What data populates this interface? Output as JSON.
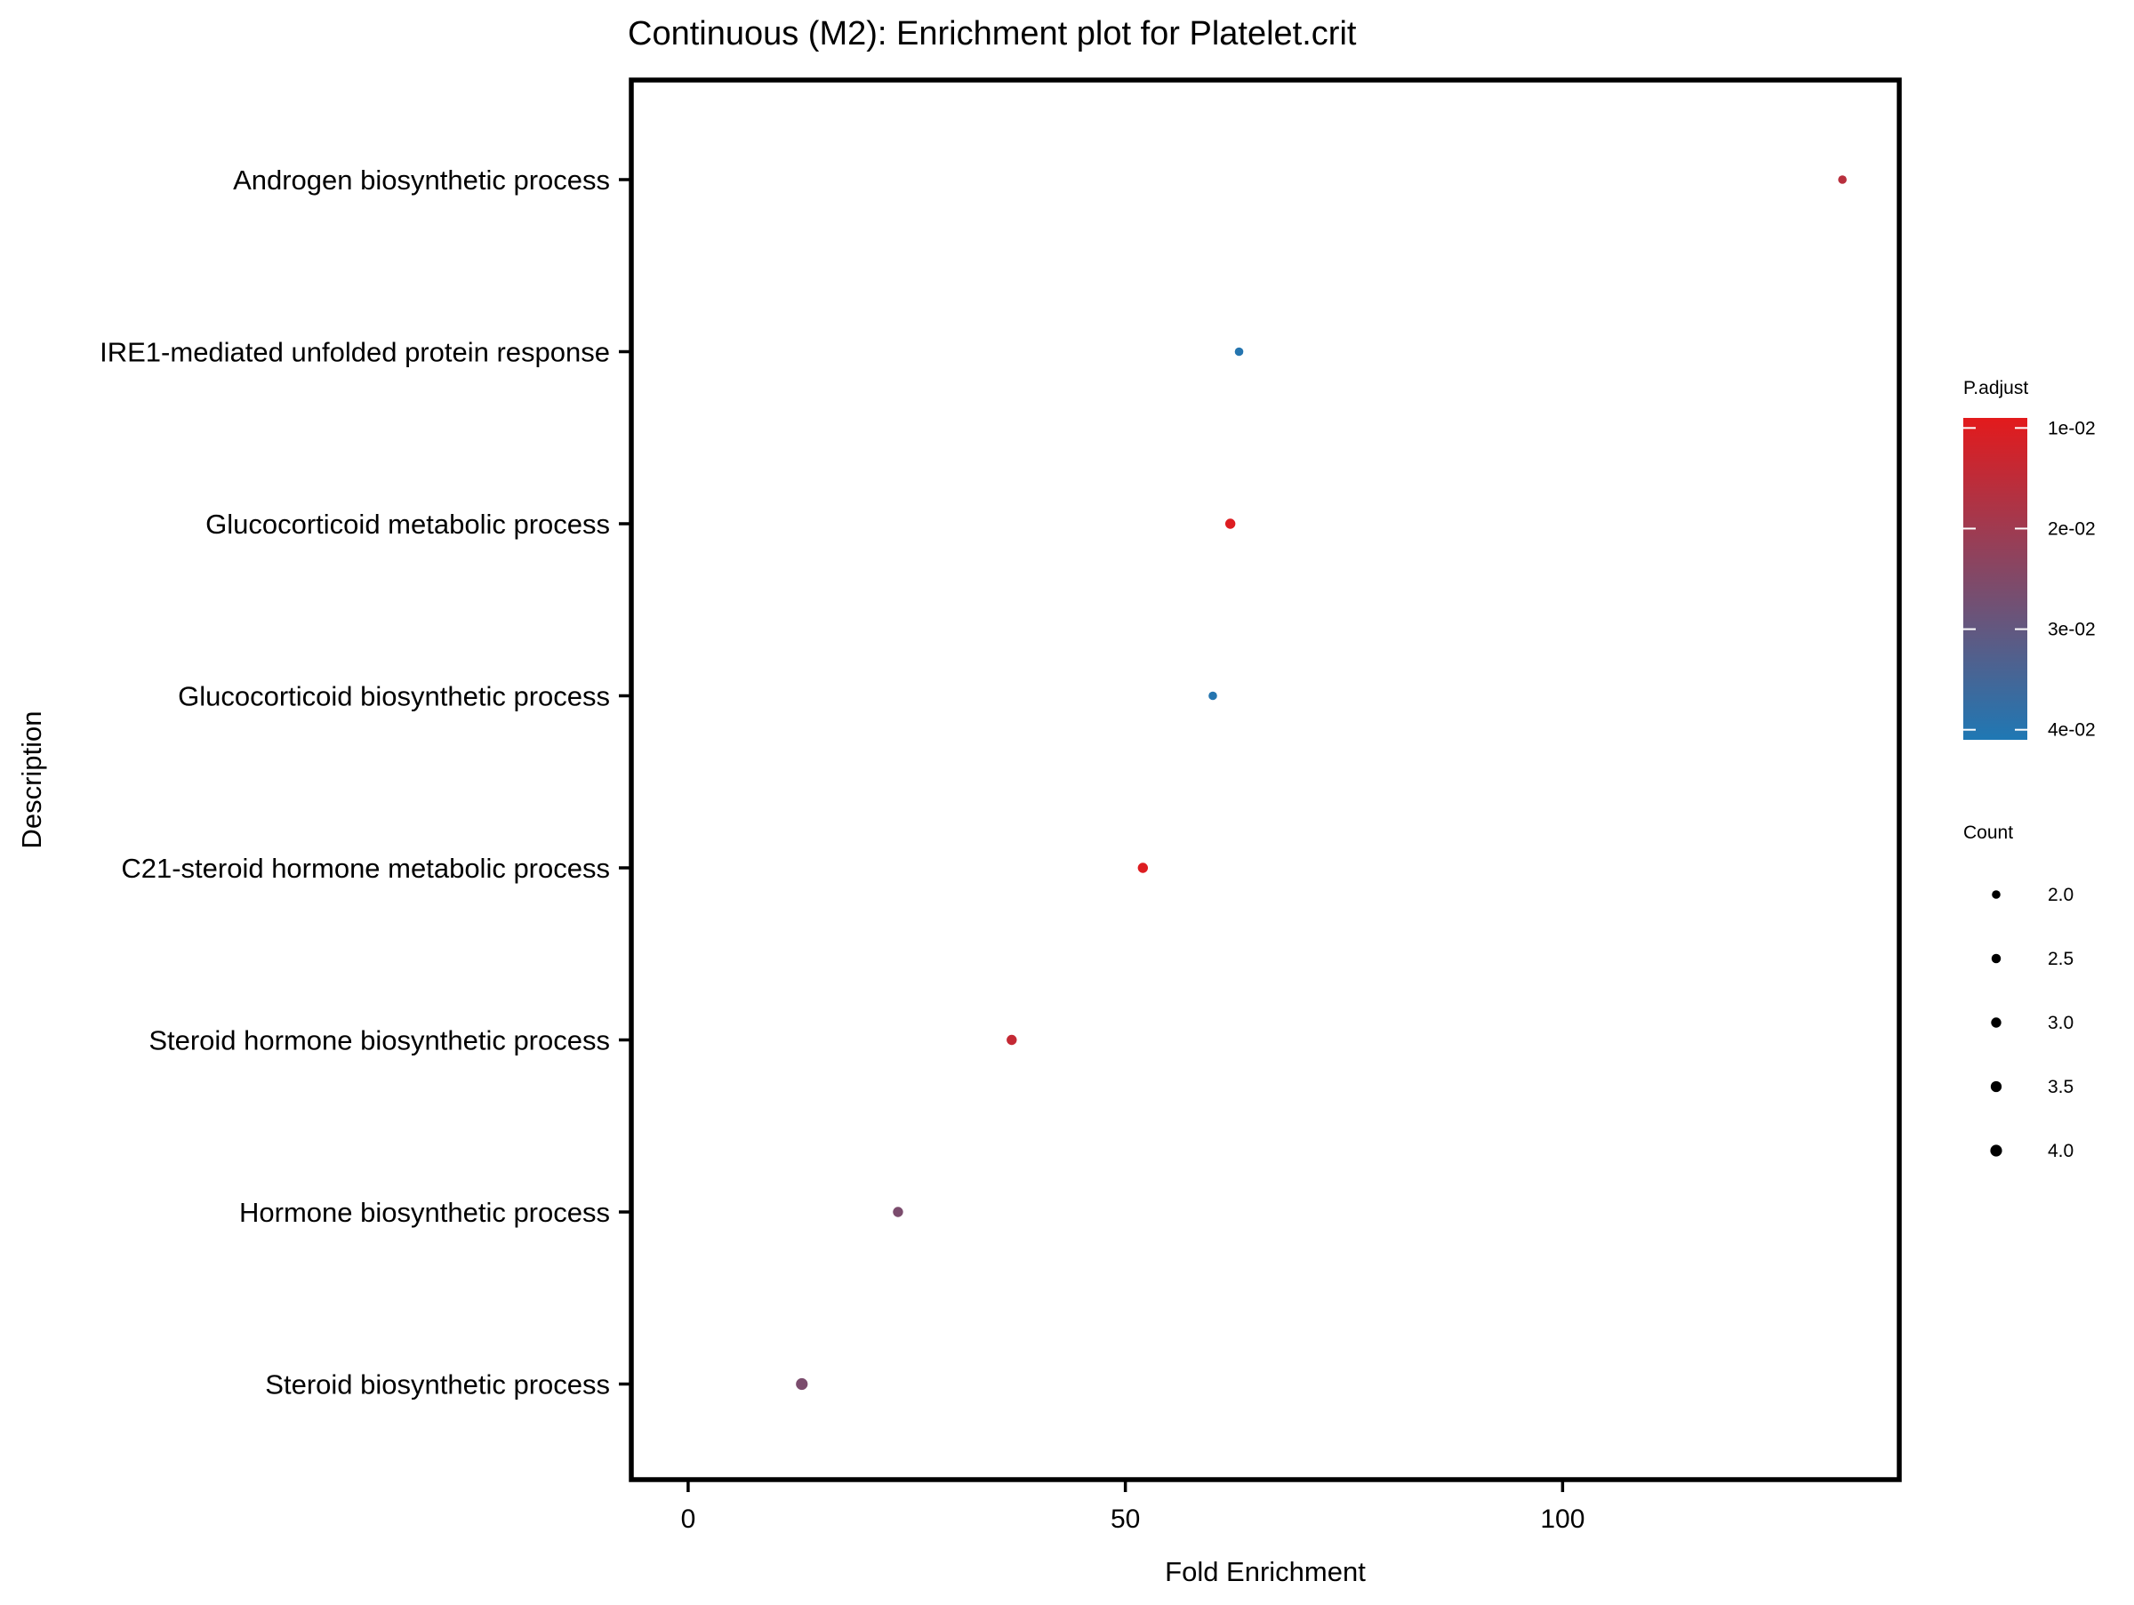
{
  "chart_data": {
    "type": "scatter",
    "title": "Continuous (M2): Enrichment plot for Platelet.crit",
    "xlabel": "Fold Enrichment",
    "ylabel": "Description",
    "xlim": [
      -6.5,
      138.5
    ],
    "xticks": [
      0,
      50,
      100
    ],
    "grid": false,
    "categories": [
      "Androgen biosynthetic process",
      "IRE1-mediated unfolded protein response",
      "Glucocorticoid metabolic process",
      "Glucocorticoid biosynthetic process",
      "C21-steroid hormone metabolic process",
      "Steroid hormone biosynthetic process",
      "Hormone biosynthetic process",
      "Steroid biosynthetic process"
    ],
    "points": [
      {
        "term": "Androgen biosynthetic process",
        "fold_enrichment": 132,
        "p_adjust": 0.016,
        "count": 2
      },
      {
        "term": "IRE1-mediated unfolded protein response",
        "fold_enrichment": 63,
        "p_adjust": 0.04,
        "count": 2
      },
      {
        "term": "Glucocorticoid metabolic process",
        "fold_enrichment": 62,
        "p_adjust": 0.01,
        "count": 3
      },
      {
        "term": "Glucocorticoid biosynthetic process",
        "fold_enrichment": 60,
        "p_adjust": 0.04,
        "count": 2
      },
      {
        "term": "C21-steroid hormone metabolic process",
        "fold_enrichment": 52,
        "p_adjust": 0.01,
        "count": 3
      },
      {
        "term": "Steroid hormone biosynthetic process",
        "fold_enrichment": 37,
        "p_adjust": 0.014,
        "count": 3
      },
      {
        "term": "Hormone biosynthetic process",
        "fold_enrichment": 24,
        "p_adjust": 0.026,
        "count": 3
      },
      {
        "term": "Steroid biosynthetic process",
        "fold_enrichment": 13,
        "p_adjust": 0.026,
        "count": 4
      }
    ],
    "color_legend": {
      "title": "P.adjust",
      "range": [
        0.009,
        0.041
      ],
      "low_color": "#e31a1c",
      "high_color": "#1f78b4",
      "breaks": [
        {
          "label": "1e-02",
          "value": 0.01
        },
        {
          "label": "2e-02",
          "value": 0.02
        },
        {
          "label": "3e-02",
          "value": 0.03
        },
        {
          "label": "4e-02",
          "value": 0.04
        }
      ]
    },
    "size_legend": {
      "title": "Count",
      "breaks": [
        {
          "label": "2.0",
          "value": 2.0
        },
        {
          "label": "2.5",
          "value": 2.5
        },
        {
          "label": "3.0",
          "value": 3.0
        },
        {
          "label": "3.5",
          "value": 3.5
        },
        {
          "label": "4.0",
          "value": 4.0
        }
      ]
    },
    "legend_position": "right"
  }
}
